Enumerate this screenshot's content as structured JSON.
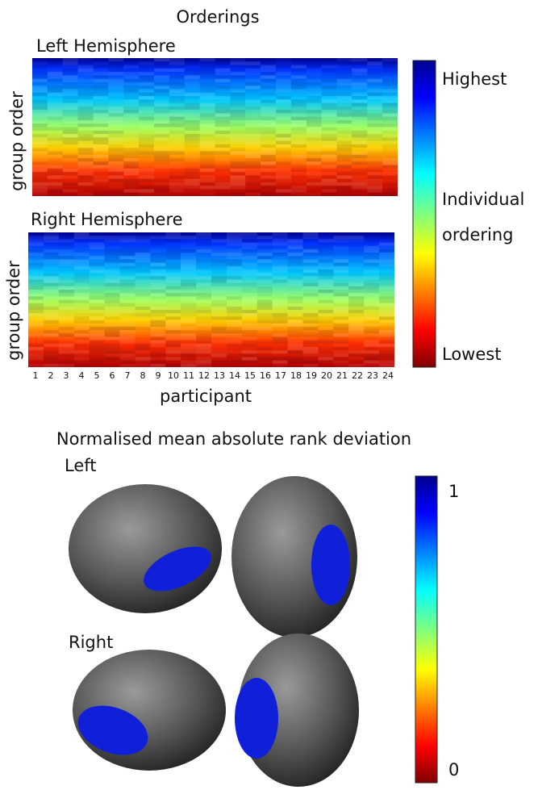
{
  "title": "Orderings",
  "panels": [
    {
      "title": "Left Hemisphere",
      "y_label": "group order"
    },
    {
      "title": "Right Hemisphere",
      "y_label": "group order"
    }
  ],
  "x_label": "participant",
  "participants": [
    "1",
    "2",
    "3",
    "4",
    "5",
    "6",
    "7",
    "8",
    "9",
    "10",
    "11",
    "12",
    "13",
    "14",
    "15",
    "16",
    "17",
    "18",
    "19",
    "20",
    "21",
    "22",
    "23",
    "24"
  ],
  "colorbar": {
    "top": "Highest",
    "middle": [
      "Individual",
      "ordering"
    ],
    "bottom": "Lowest"
  },
  "bottom_title": "Normalised mean absolute rank deviation",
  "brains": [
    {
      "label": "Left"
    },
    {
      "label": "Right"
    }
  ],
  "colorbar2": {
    "top": "1",
    "bottom": "0"
  }
}
